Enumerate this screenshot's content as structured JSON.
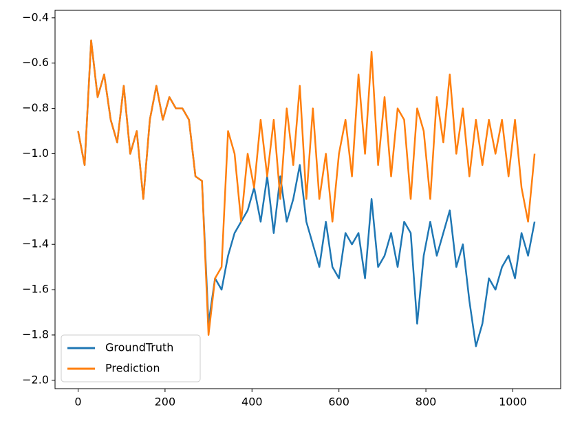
{
  "chart_data": {
    "type": "line",
    "x": [
      0,
      15,
      30,
      45,
      60,
      75,
      90,
      105,
      120,
      135,
      150,
      165,
      180,
      195,
      210,
      225,
      240,
      255,
      270,
      285,
      300,
      315,
      330,
      345,
      360,
      375,
      390,
      405,
      420,
      435,
      450,
      465,
      480,
      495,
      510,
      525,
      540,
      555,
      570,
      585,
      600,
      615,
      630,
      645,
      660,
      675,
      690,
      705,
      720,
      735,
      750,
      765,
      780,
      795,
      810,
      825,
      840,
      855,
      870,
      885,
      900,
      915,
      930,
      945,
      960,
      975,
      990,
      1005,
      1020,
      1035,
      1050
    ],
    "series": [
      {
        "name": "GroundTruth",
        "color": "#1f77b4",
        "values": [
          -0.9,
          -1.05,
          -0.5,
          -0.75,
          -0.65,
          -0.85,
          -0.95,
          -0.7,
          -1.0,
          -0.9,
          -1.2,
          -0.85,
          -0.7,
          -0.85,
          -0.75,
          -0.8,
          -0.8,
          -0.85,
          -1.1,
          -1.12,
          -1.75,
          -1.55,
          -1.6,
          -1.45,
          -1.35,
          -1.3,
          -1.25,
          -1.15,
          -1.3,
          -1.1,
          -1.35,
          -1.1,
          -1.3,
          -1.2,
          -1.05,
          -1.3,
          -1.4,
          -1.5,
          -1.3,
          -1.5,
          -1.55,
          -1.35,
          -1.4,
          -1.35,
          -1.55,
          -1.2,
          -1.5,
          -1.45,
          -1.35,
          -1.5,
          -1.3,
          -1.35,
          -1.75,
          -1.45,
          -1.3,
          -1.45,
          -1.35,
          -1.25,
          -1.5,
          -1.4,
          -1.65,
          -1.85,
          -1.75,
          -1.55,
          -1.6,
          -1.5,
          -1.45,
          -1.55,
          -1.35,
          -1.45,
          -1.3
        ]
      },
      {
        "name": "Prediction",
        "color": "#ff7f0e",
        "values": [
          -0.9,
          -1.05,
          -0.5,
          -0.75,
          -0.65,
          -0.85,
          -0.95,
          -0.7,
          -1.0,
          -0.9,
          -1.2,
          -0.85,
          -0.7,
          -0.85,
          -0.75,
          -0.8,
          -0.8,
          -0.85,
          -1.1,
          -1.12,
          -1.8,
          -1.55,
          -1.5,
          -0.9,
          -1.0,
          -1.3,
          -1.0,
          -1.15,
          -0.85,
          -1.1,
          -0.85,
          -1.2,
          -0.8,
          -1.05,
          -0.7,
          -1.2,
          -0.8,
          -1.2,
          -1.0,
          -1.3,
          -1.0,
          -0.85,
          -1.1,
          -0.65,
          -1.0,
          -0.55,
          -1.05,
          -0.75,
          -1.1,
          -0.8,
          -0.85,
          -1.2,
          -0.8,
          -0.9,
          -1.2,
          -0.75,
          -0.95,
          -0.65,
          -1.0,
          -0.8,
          -1.1,
          -0.85,
          -1.05,
          -0.85,
          -1.0,
          -0.85,
          -1.1,
          -0.85,
          -1.15,
          -1.3,
          -1.0
        ]
      }
    ],
    "xlim": [
      -53,
      1110
    ],
    "ylim": [
      -2.037,
      -0.367
    ],
    "xticks": [
      0,
      200,
      400,
      600,
      800,
      1000
    ],
    "yticks": [
      {
        "value": -2.0,
        "label": "−2.0"
      },
      {
        "value": -1.8,
        "label": "−1.8"
      },
      {
        "value": -1.6,
        "label": "−1.6"
      },
      {
        "value": -1.4,
        "label": "−1.4"
      },
      {
        "value": -1.2,
        "label": "−1.2"
      },
      {
        "value": -1.0,
        "label": "−1.0"
      },
      {
        "value": -0.8,
        "label": "−0.8"
      },
      {
        "value": -0.6,
        "label": "−0.6"
      },
      {
        "value": -0.4,
        "label": "−0.4"
      }
    ],
    "legend": "lower left"
  }
}
